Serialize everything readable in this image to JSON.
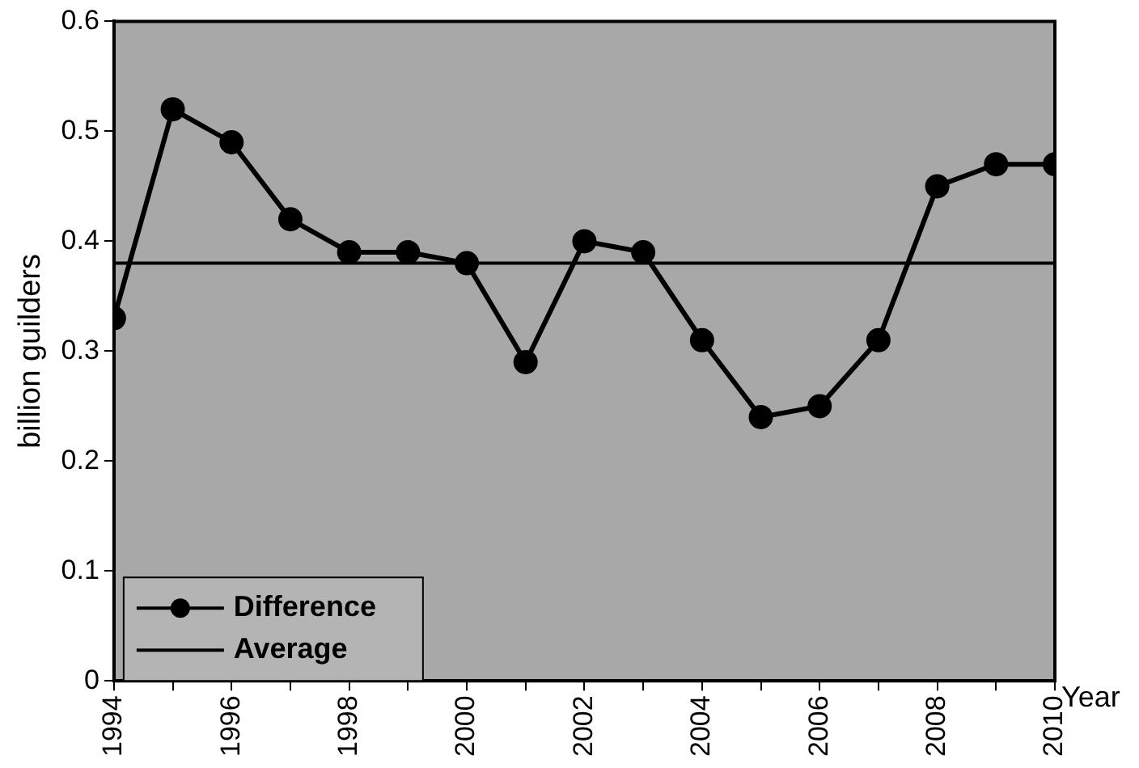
{
  "chart_data": {
    "type": "line",
    "xlabel": "Year",
    "ylabel": "billion guilders",
    "x": [
      1994,
      1995,
      1996,
      1997,
      1998,
      1999,
      2000,
      2001,
      2002,
      2003,
      2004,
      2005,
      2006,
      2007,
      2008,
      2009,
      2010
    ],
    "series": [
      {
        "name": "Difference",
        "color": "#000000",
        "values": [
          0.33,
          0.52,
          0.49,
          0.42,
          0.39,
          0.39,
          0.38,
          0.29,
          0.4,
          0.39,
          0.31,
          0.24,
          0.25,
          0.31,
          0.45,
          0.47,
          0.47
        ]
      }
    ],
    "ref_lines": [
      {
        "axis": "y",
        "value": 0.38,
        "label": "Average",
        "color": "#000000"
      }
    ],
    "xlim": [
      1994,
      2010
    ],
    "xticks": [
      1994,
      {
        "value": 1995,
        "label": null
      },
      1996,
      {
        "value": 1997,
        "label": null
      },
      1998,
      {
        "value": 1999,
        "label": null
      },
      2000,
      {
        "value": 2001,
        "label": null
      },
      2002,
      {
        "value": 2003,
        "label": null
      },
      2004,
      {
        "value": 2005,
        "label": null
      },
      2006,
      {
        "value": 2007,
        "label": null
      },
      2008,
      {
        "value": 2009,
        "label": null
      },
      2010
    ],
    "ylim": [
      0,
      0.6
    ],
    "yticks": [
      0,
      0.1,
      0.2,
      0.3,
      0.4,
      0.5,
      0.6
    ],
    "grid": false,
    "legend": "bottom left",
    "marker": "circle",
    "line_style": "solid"
  }
}
